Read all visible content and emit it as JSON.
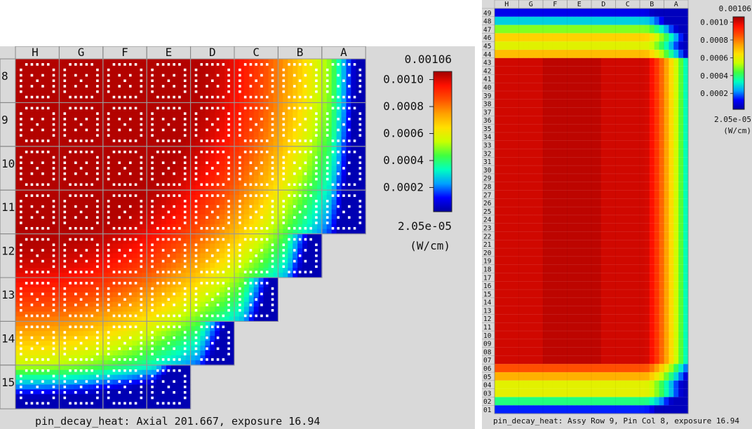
{
  "colors": {
    "panel_bg": "#d9d9d9",
    "colormap": [
      "#0000a0",
      "#0000ff",
      "#00a0ff",
      "#00ffc0",
      "#40ff40",
      "#c8ff00",
      "#ffe000",
      "#ffa000",
      "#ff5000",
      "#ff1000",
      "#a00000"
    ]
  },
  "left_panel": {
    "col_labels": [
      "H",
      "G",
      "F",
      "E",
      "D",
      "C",
      "B",
      "A"
    ],
    "row_labels": [
      "8",
      "9",
      "10",
      "11",
      "12",
      "13",
      "14",
      "15"
    ],
    "row_extents": [
      8,
      8,
      8,
      8,
      7,
      6,
      5,
      4
    ],
    "caption": "pin_decay_heat: Axial 201.667, exposure 16.94",
    "legend": {
      "max": "0.00106",
      "ticks": [
        "0.0010",
        "0.0008",
        "0.0006",
        "0.0004",
        "0.0002"
      ],
      "min": "2.05e-05",
      "unit": "(W/cm)"
    }
  },
  "right_panel": {
    "col_labels": [
      "H",
      "G",
      "F",
      "E",
      "D",
      "C",
      "B",
      "A"
    ],
    "row_labels": [
      "49",
      "48",
      "47",
      "46",
      "45",
      "44",
      "43",
      "42",
      "41",
      "40",
      "39",
      "38",
      "37",
      "36",
      "35",
      "34",
      "33",
      "32",
      "31",
      "30",
      "29",
      "28",
      "27",
      "26",
      "25",
      "24",
      "23",
      "22",
      "21",
      "20",
      "19",
      "18",
      "17",
      "16",
      "15",
      "14",
      "13",
      "12",
      "11",
      "10",
      "09",
      "08",
      "07",
      "06",
      "05",
      "04",
      "03",
      "02",
      "01"
    ],
    "caption": "pin_decay_heat: Assy Row 9, Pin Col 8, exposure 16.94",
    "legend": {
      "max": "0.00106",
      "ticks": [
        "0.0010",
        "0.0008",
        "0.0006",
        "0.0004",
        "0.0002"
      ],
      "min": "2.05e-05",
      "unit": "(W/cm)"
    }
  }
}
